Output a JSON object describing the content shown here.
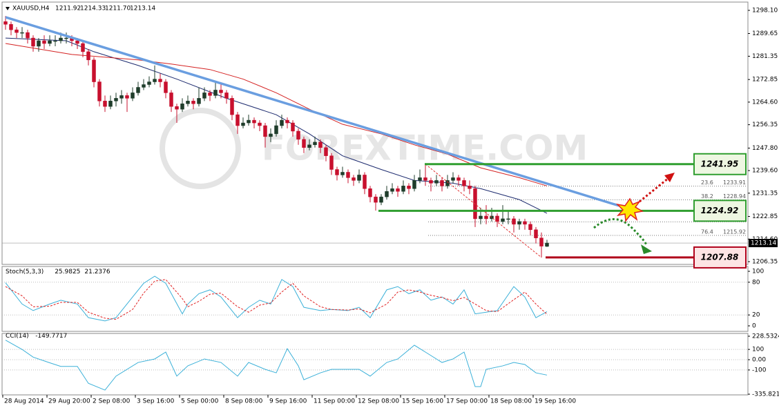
{
  "chart_data": [
    {
      "type": "candlestick",
      "symbol": "XAUUSD,H4",
      "ohlc_labels": [
        "1211.92",
        "1214.33",
        "1211.70",
        "1213.14"
      ],
      "watermark": "FOREXTIME.COM",
      "bull_color": "#1f3d2b",
      "bear_color": "#c8102e",
      "ohlc": [
        [
          1294,
          1296,
          1291,
          1293
        ],
        [
          1293,
          1294,
          1289,
          1291
        ],
        [
          1291,
          1292,
          1288,
          1290
        ],
        [
          1290,
          1292,
          1288,
          1290
        ],
        [
          1290,
          1291,
          1286,
          1288
        ],
        [
          1288,
          1289,
          1283,
          1285
        ],
        [
          1285,
          1288,
          1283,
          1287
        ],
        [
          1287,
          1289,
          1284,
          1286
        ],
        [
          1286,
          1289,
          1285,
          1287
        ],
        [
          1287,
          1289,
          1285,
          1287
        ],
        [
          1287,
          1290,
          1286,
          1288
        ],
        [
          1288,
          1290,
          1286,
          1288
        ],
        [
          1288,
          1289,
          1285,
          1287
        ],
        [
          1287,
          1288,
          1284,
          1286
        ],
        [
          1286,
          1287,
          1281,
          1283
        ],
        [
          1283,
          1284,
          1278,
          1280
        ],
        [
          1280,
          1281,
          1270,
          1272
        ],
        [
          1272,
          1273,
          1263,
          1265
        ],
        [
          1265,
          1267,
          1261,
          1263
        ],
        [
          1263,
          1267,
          1262,
          1265
        ],
        [
          1265,
          1268,
          1263,
          1266
        ],
        [
          1266,
          1269,
          1264,
          1267
        ],
        [
          1267,
          1268,
          1261,
          1266
        ],
        [
          1266,
          1270,
          1265,
          1268
        ],
        [
          1268,
          1272,
          1267,
          1270
        ],
        [
          1270,
          1273,
          1269,
          1271
        ],
        [
          1271,
          1274,
          1270,
          1272
        ],
        [
          1272,
          1278,
          1271,
          1273
        ],
        [
          1273,
          1275,
          1270,
          1272
        ],
        [
          1272,
          1273,
          1266,
          1268
        ],
        [
          1268,
          1269,
          1261,
          1263
        ],
        [
          1263,
          1264,
          1257,
          1262
        ],
        [
          1262,
          1266,
          1261,
          1264
        ],
        [
          1264,
          1267,
          1263,
          1265
        ],
        [
          1265,
          1266,
          1262,
          1264
        ],
        [
          1264,
          1270,
          1263,
          1266
        ],
        [
          1266,
          1270,
          1265,
          1268
        ],
        [
          1268,
          1269,
          1265,
          1267
        ],
        [
          1267,
          1272,
          1266,
          1269
        ],
        [
          1269,
          1271,
          1266,
          1268
        ],
        [
          1268,
          1269,
          1264,
          1266
        ],
        [
          1266,
          1267,
          1258,
          1260
        ],
        [
          1260,
          1261,
          1253,
          1256
        ],
        [
          1256,
          1259,
          1255,
          1257
        ],
        [
          1257,
          1260,
          1256,
          1258
        ],
        [
          1258,
          1259,
          1255,
          1257
        ],
        [
          1257,
          1258,
          1254,
          1256
        ],
        [
          1256,
          1257,
          1248,
          1252
        ],
        [
          1252,
          1255,
          1250,
          1253
        ],
        [
          1253,
          1258,
          1252,
          1256
        ],
        [
          1256,
          1260,
          1255,
          1258
        ],
        [
          1258,
          1259,
          1255,
          1257
        ],
        [
          1257,
          1258,
          1252,
          1254
        ],
        [
          1254,
          1255,
          1249,
          1251
        ],
        [
          1251,
          1252,
          1246,
          1248
        ],
        [
          1248,
          1251,
          1247,
          1249
        ],
        [
          1249,
          1252,
          1248,
          1250
        ],
        [
          1250,
          1251,
          1246,
          1248
        ],
        [
          1248,
          1249,
          1243,
          1245
        ],
        [
          1245,
          1246,
          1238,
          1240
        ],
        [
          1240,
          1241,
          1236,
          1238
        ],
        [
          1238,
          1241,
          1237,
          1239
        ],
        [
          1239,
          1240,
          1235,
          1237
        ],
        [
          1237,
          1238,
          1234,
          1236
        ],
        [
          1236,
          1240,
          1235,
          1238
        ],
        [
          1238,
          1239,
          1231,
          1233
        ],
        [
          1233,
          1234,
          1228,
          1230
        ],
        [
          1230,
          1231,
          1225,
          1228
        ],
        [
          1228,
          1231,
          1227,
          1230
        ],
        [
          1230,
          1234,
          1229,
          1232
        ],
        [
          1232,
          1235,
          1231,
          1233
        ],
        [
          1233,
          1234,
          1230,
          1232
        ],
        [
          1232,
          1236,
          1231,
          1234
        ],
        [
          1234,
          1235,
          1231,
          1233
        ],
        [
          1233,
          1238,
          1232,
          1236
        ],
        [
          1236,
          1240,
          1235,
          1237
        ],
        [
          1237,
          1241.95,
          1234,
          1236
        ],
        [
          1236,
          1237,
          1232,
          1235
        ],
        [
          1235,
          1238,
          1234,
          1236
        ],
        [
          1236,
          1237,
          1232,
          1234
        ],
        [
          1234,
          1238,
          1233,
          1236
        ],
        [
          1236,
          1239,
          1235,
          1237
        ],
        [
          1237,
          1238,
          1234,
          1236
        ],
        [
          1236,
          1237,
          1232,
          1234
        ],
        [
          1234,
          1236,
          1231,
          1233
        ],
        [
          1233,
          1234,
          1219,
          1222
        ],
        [
          1222,
          1226,
          1220,
          1223
        ],
        [
          1223,
          1227,
          1220,
          1222
        ],
        [
          1222,
          1226,
          1221,
          1223
        ],
        [
          1223,
          1224,
          1219,
          1221
        ],
        [
          1221,
          1227,
          1220,
          1222
        ],
        [
          1222,
          1225,
          1220,
          1222
        ],
        [
          1222,
          1223,
          1217,
          1220
        ],
        [
          1220,
          1222,
          1218,
          1221
        ],
        [
          1221,
          1222,
          1218,
          1220
        ],
        [
          1220,
          1221,
          1216,
          1218
        ],
        [
          1218,
          1219,
          1213,
          1215
        ],
        [
          1215,
          1217,
          1207.88,
          1212
        ],
        [
          1211.92,
          1214.33,
          1211.7,
          1213.14
        ]
      ],
      "moving_averages": [
        {
          "color": "#1c2a6e",
          "x": [
            0,
            11,
            16,
            24,
            31,
            40,
            49,
            55,
            61,
            68,
            74,
            81,
            86,
            93,
            98
          ],
          "values": [
            1288,
            1287,
            1283,
            1278,
            1273,
            1266,
            1260,
            1253,
            1245,
            1240,
            1236,
            1235,
            1233,
            1229,
            1224
          ]
        },
        {
          "color": "#d42020",
          "x": [
            0,
            12,
            24,
            30,
            37,
            43,
            49,
            55,
            61,
            68,
            74,
            80,
            86,
            93,
            98
          ],
          "values": [
            1286,
            1282,
            1280,
            1278.5,
            1276.5,
            1273,
            1268,
            1262,
            1256.5,
            1253,
            1249,
            1245.6,
            1240.6,
            1237,
            1234
          ]
        }
      ],
      "trendline": {
        "color": "#6a9ee0",
        "x": [
          0,
          111
        ],
        "values": [
          1295.6,
          1226.8
        ]
      },
      "levels": [
        {
          "value": 1241.95,
          "color": "#2f9e2f"
        },
        {
          "value": 1224.92,
          "color": "#2f9e2f"
        },
        {
          "value": 1207.88,
          "color": "#b0001a"
        }
      ],
      "fibonacci": [
        {
          "ratio": 23.6,
          "price": 1233.91
        },
        {
          "ratio": 38.2,
          "price": 1228.94
        },
        {
          "price": 1220.89
        },
        {
          "ratio": 76.4,
          "price": 1215.92
        }
      ],
      "ylim": [
        1206.35,
        1298.1
      ],
      "yticks": [
        {
          "value": 1298.1,
          "label": "1298.10"
        },
        1289.65,
        1281.35,
        1272.85,
        {
          "value": 1264.6,
          "label": "1264.60"
        },
        1256.35,
        {
          "value": 1247.8,
          "label": "1247.80"
        },
        {
          "value": 1239.6,
          "label": "1239.60"
        },
        1231.35,
        1222.85,
        {
          "value": 1214.6,
          "label": "1214.60"
        },
        1206.35
      ],
      "xticks": [
        {
          "value": 0,
          "label": "28 Aug 2014"
        },
        {
          "value": 8,
          "label": "29 Aug 20:00"
        },
        {
          "value": 16,
          "label": "2 Sep 08:00"
        },
        {
          "value": 24,
          "label": "3 Sep 16:00"
        },
        {
          "value": 32,
          "label": "5 Sep 00:00"
        },
        {
          "value": 40,
          "label": "8 Sep 08:00"
        },
        {
          "value": 48,
          "label": "9 Sep 16:00"
        },
        {
          "value": 56,
          "label": "11 Sep 00:00"
        },
        {
          "value": 64,
          "label": "12 Sep 08:00"
        },
        {
          "value": 72,
          "label": "15 Sep 16:00"
        },
        {
          "value": 80,
          "label": "17 Sep 00:00"
        },
        {
          "value": 88,
          "label": "18 Sep 08:00"
        },
        {
          "value": 96,
          "label": "19 Sep 16:00"
        }
      ]
    },
    {
      "type": "line",
      "title": "Stoch(5,3,3)",
      "x": [
        0,
        3,
        5,
        8,
        10,
        13,
        15,
        18,
        20,
        23,
        25,
        27,
        29,
        32,
        33,
        35,
        37,
        39,
        42,
        44,
        46,
        48,
        50,
        52,
        54,
        57,
        59,
        62,
        64,
        66,
        69,
        71,
        73,
        75,
        77,
        79,
        81,
        83,
        85,
        87,
        89,
        92,
        94,
        96,
        98
      ],
      "series": [
        {
          "color": "#3ab0d8",
          "values": [
            79,
            40,
            28,
            40,
            47,
            40,
            15,
            9,
            15,
            53,
            78,
            91,
            78,
            22,
            40,
            59,
            66,
            53,
            15,
            34,
            47,
            40,
            85,
            72,
            34,
            28,
            30,
            28,
            34,
            15,
            66,
            72,
            59,
            66,
            47,
            53,
            40,
            66,
            22,
            25,
            28,
            72,
            53,
            15,
            25.9825
          ]
        },
        {
          "color": "#e02020",
          "dashed": true,
          "values": [
            72,
            55,
            35,
            36,
            43,
            43,
            25,
            14,
            12,
            30,
            60,
            82,
            85,
            50,
            35,
            45,
            58,
            60,
            35,
            25,
            38,
            42,
            62,
            78,
            55,
            35,
            30,
            29,
            31,
            24,
            40,
            62,
            66,
            62,
            56,
            52,
            46,
            52,
            40,
            28,
            26,
            48,
            62,
            40,
            21.2376
          ]
        }
      ],
      "ylim": [
        0,
        100
      ],
      "yticks": [
        100,
        80,
        20,
        0
      ],
      "grid": true
    },
    {
      "type": "line",
      "title": "CCI(14)",
      "x": [
        0,
        3,
        5,
        8,
        10,
        13,
        15,
        18,
        20,
        24,
        27,
        29,
        31,
        33,
        36,
        39,
        42,
        44,
        47,
        49,
        51,
        53,
        54,
        57,
        59,
        62,
        64,
        66,
        69,
        71,
        74,
        76,
        79,
        81,
        83,
        85,
        86,
        87,
        90,
        92,
        94,
        96,
        98
      ],
      "series": [
        {
          "color": "#3ab0d8",
          "values": [
            190,
            100,
            25,
            -30,
            -65,
            -65,
            -230,
            -296,
            -160,
            -27,
            7,
            74,
            -160,
            -60,
            7,
            -27,
            -160,
            -27,
            -94,
            -128,
            107,
            -60,
            -195,
            -128,
            -94,
            -94,
            -94,
            -160,
            -27,
            7,
            141,
            74,
            -27,
            7,
            74,
            -262,
            -262,
            -94,
            -60,
            -27,
            -47,
            -128,
            -149.7717
          ]
        }
      ],
      "ylim": [
        -335.8214,
        228.5324
      ],
      "yticks": [
        228.5324,
        100,
        {
          "value": 0,
          "label": "0.00"
        },
        -100,
        -335.8214
      ],
      "grid": true
    }
  ]
}
